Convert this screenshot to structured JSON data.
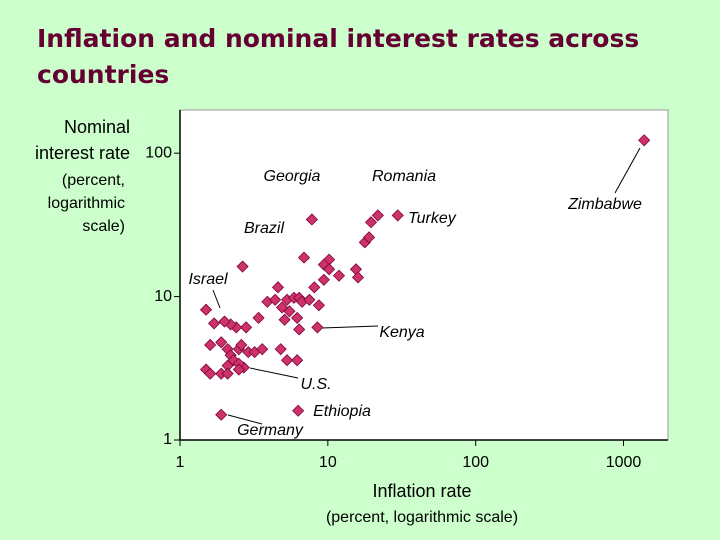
{
  "chart_data": {
    "type": "scatter",
    "title": [
      "Inflation and nominal interest rates across",
      "countries"
    ],
    "ylabel": [
      "Nominal",
      "interest rate",
      "(percent,",
      "logarithmic",
      "scale)"
    ],
    "xlabel": [
      "Inflation rate",
      "(percent, logarithmic scale)"
    ],
    "xscale": "log",
    "yscale": "log",
    "xlim": [
      1,
      2000
    ],
    "ylim": [
      1,
      200
    ],
    "xticks": [
      1,
      10,
      100,
      1000
    ],
    "yticks": [
      1,
      10,
      100
    ],
    "annotations": [
      "Zimbabwe",
      "Georgia",
      "Romania",
      "Turkey",
      "Brazil",
      "Israel",
      "Kenya",
      "U.S.",
      "Ethiopia",
      "Germany"
    ],
    "x": [
      1380,
      7.8,
      21.8,
      29.7,
      6.9,
      2.65,
      8.5,
      2.7,
      6.3,
      1.9,
      19.6,
      17.8,
      19.0,
      15.5,
      16.0,
      11.9,
      10.2,
      9.4,
      10.2,
      8.1,
      9.4,
      4.6,
      3.9,
      4.4,
      4.9,
      5.3,
      5.9,
      6.4,
      6.7,
      5.5,
      5.1,
      6.2,
      7.5,
      8.7,
      6.4,
      3.4,
      2.8,
      2.4,
      2.2,
      1.7,
      2.0,
      1.5,
      1.6,
      1.9,
      2.1,
      2.2,
      2.5,
      2.6,
      2.9,
      3.2,
      3.6,
      4.8,
      5.3,
      6.2,
      2.3,
      2.1,
      2.5,
      2.5,
      1.5,
      1.6,
      1.9,
      2.1
    ],
    "series": [
      {
        "color": "#cc3366",
        "values": [
          123,
          34.5,
          36.8,
          36.8,
          18.7,
          16.2,
          6.1,
          3.2,
          1.6,
          1.5,
          33,
          23.9,
          25.9,
          15.5,
          13.6,
          14.0,
          18.1,
          16.7,
          15.5,
          11.6,
          13.1,
          11.6,
          9.2,
          9.5,
          8.4,
          9.5,
          9.8,
          9.8,
          9.2,
          7.9,
          6.9,
          7.1,
          9.5,
          8.7,
          5.9,
          7.1,
          6.1,
          6.1,
          6.4,
          6.5,
          6.7,
          8.1,
          4.6,
          4.8,
          4.3,
          3.9,
          4.3,
          4.6,
          4.1,
          4.1,
          4.3,
          4.3,
          3.6,
          3.6,
          3.6,
          3.3,
          3.4,
          3.1,
          3.1,
          2.9,
          2.9,
          2.9
        ]
      }
    ]
  }
}
